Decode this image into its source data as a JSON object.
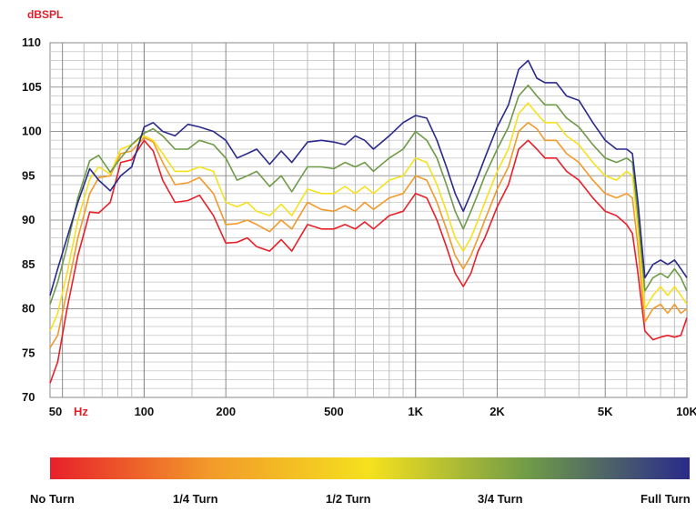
{
  "chart_data": {
    "type": "line",
    "ylabel": "dBSPL",
    "xunit": "Hz",
    "xscale": "log",
    "xlim": [
      45,
      10000
    ],
    "ylim": [
      70,
      110
    ],
    "grid": true,
    "yticks": [
      "110",
      "105",
      "100",
      "95",
      "90",
      "85",
      "80",
      "75",
      "70"
    ],
    "xticks": [
      {
        "value": 50,
        "label": "50"
      },
      {
        "value": 100,
        "label": "100"
      },
      {
        "value": 200,
        "label": "200"
      },
      {
        "value": 500,
        "label": "500"
      },
      {
        "value": 1000,
        "label": "1K"
      },
      {
        "value": 2000,
        "label": "2K"
      },
      {
        "value": 5000,
        "label": "5K"
      },
      {
        "value": 10000,
        "label": "10K"
      }
    ],
    "x": [
      45,
      48,
      52,
      57,
      63,
      68,
      75,
      82,
      90,
      100,
      108,
      117,
      130,
      145,
      160,
      180,
      200,
      220,
      240,
      260,
      290,
      320,
      350,
      400,
      450,
      500,
      550,
      600,
      650,
      700,
      800,
      900,
      1000,
      1100,
      1200,
      1300,
      1400,
      1500,
      1600,
      1700,
      1800,
      2000,
      2200,
      2400,
      2600,
      2800,
      3000,
      3300,
      3600,
      4000,
      4500,
      5000,
      5500,
      6000,
      6300,
      6600,
      7000,
      7500,
      8000,
      8500,
      9000,
      9500,
      10000
    ],
    "series": [
      {
        "name": "",
        "color": "#e8202a",
        "values": [
          71.6,
          74.0,
          80.0,
          86.0,
          90.9,
          90.8,
          92.0,
          96.5,
          96.8,
          99.0,
          97.8,
          94.5,
          92.0,
          92.2,
          92.8,
          90.5,
          87.4,
          87.5,
          88.0,
          87.0,
          86.5,
          87.8,
          86.5,
          89.5,
          89.0,
          89.0,
          89.5,
          89.0,
          89.8,
          89.0,
          90.5,
          91.0,
          93.0,
          92.5,
          90.0,
          87.0,
          84.0,
          82.5,
          84.0,
          86.5,
          88.0,
          91.5,
          94.0,
          98.0,
          99.0,
          98.0,
          97.0,
          97.0,
          95.5,
          94.5,
          92.5,
          91.0,
          90.5,
          89.5,
          88.5,
          84.0,
          77.5,
          76.5,
          76.8,
          77.0,
          76.8,
          77.0,
          79.0
        ]
      },
      {
        "name": "",
        "color": "#f29a2a",
        "values": [
          75.6,
          77.0,
          82.0,
          88.0,
          93.0,
          94.8,
          95.0,
          97.5,
          97.8,
          99.3,
          98.8,
          96.5,
          94.0,
          94.2,
          94.8,
          93.0,
          89.5,
          89.6,
          90.0,
          89.5,
          88.7,
          90.0,
          89.0,
          92.0,
          91.2,
          91.0,
          91.6,
          91.0,
          92.0,
          91.2,
          92.5,
          93.0,
          95.0,
          94.5,
          92.0,
          89.0,
          86.0,
          84.5,
          86.0,
          88.0,
          90.0,
          93.5,
          96.0,
          100.0,
          101.0,
          100.3,
          99.0,
          99.0,
          97.5,
          96.5,
          94.5,
          93.0,
          92.5,
          93.0,
          92.5,
          87.0,
          78.5,
          80.0,
          80.5,
          79.5,
          80.5,
          79.5,
          80.0
        ]
      },
      {
        "name": "",
        "color": "#f5e11e",
        "values": [
          77.5,
          79.5,
          84.0,
          90.0,
          94.6,
          96.0,
          95.2,
          98.0,
          98.5,
          99.5,
          99.0,
          97.5,
          95.5,
          95.5,
          96.0,
          95.5,
          92.0,
          91.5,
          92.0,
          91.0,
          90.5,
          91.8,
          90.5,
          93.5,
          93.0,
          93.0,
          93.8,
          93.0,
          93.8,
          93.0,
          94.5,
          95.0,
          97.0,
          96.5,
          94.0,
          91.0,
          88.0,
          86.5,
          88.0,
          90.0,
          92.0,
          95.5,
          98.0,
          102.0,
          103.2,
          102.0,
          101.0,
          101.0,
          99.5,
          98.5,
          96.5,
          95.0,
          94.5,
          95.5,
          95.0,
          89.0,
          80.0,
          81.5,
          82.5,
          81.5,
          82.5,
          81.5,
          80.5
        ]
      },
      {
        "name": "",
        "color": "#6f9a48",
        "values": [
          80.5,
          83.0,
          87.0,
          92.5,
          96.7,
          97.3,
          95.4,
          97.0,
          98.5,
          99.8,
          100.3,
          99.5,
          98.0,
          98.0,
          99.0,
          98.5,
          97.0,
          94.5,
          95.0,
          95.5,
          93.8,
          95.0,
          93.2,
          96.0,
          96.0,
          95.8,
          96.5,
          96.0,
          96.5,
          95.5,
          97.0,
          98.0,
          100.0,
          99.0,
          97.0,
          94.0,
          91.0,
          89.0,
          91.0,
          93.0,
          95.0,
          98.0,
          100.5,
          104.0,
          105.2,
          104.0,
          103.0,
          103.0,
          101.5,
          100.5,
          98.5,
          97.0,
          96.5,
          97.0,
          96.5,
          90.5,
          82.0,
          83.5,
          84.0,
          83.5,
          84.5,
          83.5,
          82.0
        ]
      },
      {
        "name": "",
        "color": "#2a2a8a",
        "values": [
          81.5,
          84.5,
          88.0,
          92.0,
          95.8,
          94.5,
          93.3,
          95.0,
          96.0,
          100.5,
          101.0,
          100.0,
          99.5,
          100.8,
          100.5,
          100.0,
          99.0,
          97.0,
          97.5,
          98.0,
          96.3,
          97.8,
          96.5,
          98.8,
          99.0,
          98.8,
          98.5,
          99.5,
          99.0,
          98.0,
          99.5,
          101.0,
          101.8,
          101.5,
          99.0,
          96.0,
          93.0,
          91.0,
          93.0,
          95.0,
          97.0,
          100.5,
          103.0,
          107.0,
          108.0,
          106.0,
          105.5,
          105.5,
          104.0,
          103.5,
          101.0,
          99.0,
          98.0,
          98.0,
          97.5,
          92.0,
          83.5,
          85.0,
          85.5,
          85.0,
          85.5,
          84.5,
          83.5
        ]
      }
    ]
  },
  "legend": {
    "gradient_colors": [
      "#e8202a",
      "#f29a2a",
      "#f5e11e",
      "#6f9a48",
      "#2a2a8a"
    ],
    "labels": [
      "No Turn",
      "1/4 Turn",
      "1/2 Turn",
      "3/4 Turn",
      "Full Turn"
    ]
  }
}
